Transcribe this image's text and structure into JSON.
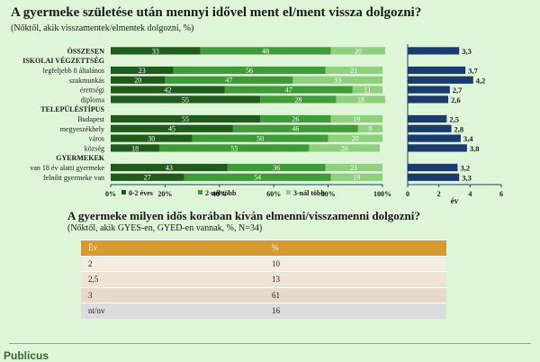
{
  "header": {
    "title": "A gyermeke születése után mennyi idővel ment el/ment vissza dolgozni?",
    "subtitle": "(Nőktől, akik visszamentek/elmentek dolgozni, %)"
  },
  "chart_data": [
    {
      "type": "bar",
      "stacked": true,
      "orientation": "horizontal",
      "categories": [
        "ÖSSZESEN",
        "ISKOLAI VÉGZETTSÉG",
        "legfeljebb 8 általános",
        "szakmunkás",
        "érettségi",
        "diploma",
        "TELEPÜLÉSTÍPUS",
        "Budapest",
        "megyeszékhely",
        "város",
        "község",
        "GYERMEKEK",
        "van 18 év alatti gyermeke",
        "felnőtt gyermeke van"
      ],
      "category_kinds": [
        "total",
        "group",
        "row",
        "row",
        "row",
        "row",
        "group",
        "row",
        "row",
        "row",
        "row",
        "group",
        "row",
        "row"
      ],
      "series": [
        {
          "name": "0-2 éves",
          "color": "#1f5b1a",
          "values": [
            33,
            null,
            23,
            20,
            42,
            55,
            null,
            55,
            45,
            30,
            18,
            null,
            43,
            27
          ]
        },
        {
          "name": "2-nél több",
          "color": "#3f9a38",
          "values": [
            48,
            null,
            56,
            47,
            47,
            28,
            null,
            26,
            46,
            50,
            55,
            null,
            36,
            54
          ]
        },
        {
          "name": "3-nál több",
          "color": "#8fd07f",
          "values": [
            20,
            null,
            21,
            33,
            11,
            18,
            null,
            19,
            9,
            20,
            26,
            null,
            21,
            19
          ]
        }
      ],
      "xlim": [
        0,
        100
      ],
      "xticks": [
        "0%",
        "20%",
        "40%",
        "60%",
        "80%",
        "100%"
      ],
      "legend": "bottom"
    },
    {
      "type": "bar",
      "orientation": "horizontal",
      "categories": [
        "ÖSSZESEN",
        "ISKOLAI VÉGZETTSÉG",
        "legfeljebb 8 általános",
        "szakmunkás",
        "érettségi",
        "diploma",
        "TELEPÜLÉSTÍPUS",
        "Budapest",
        "megyeszékhely",
        "város",
        "község",
        "GYERMEKEK",
        "van 18 év alatti gyermeke",
        "felnőtt gyermeke van"
      ],
      "values": [
        3.3,
        null,
        3.7,
        4.2,
        2.7,
        2.6,
        null,
        2.5,
        2.8,
        3.4,
        3.8,
        null,
        3.2,
        3.3
      ],
      "value_labels": [
        "3,3",
        "",
        "3,7",
        "4,2",
        "2,7",
        "2,6",
        "",
        "2,5",
        "2,8",
        "3,4",
        "3,8",
        "",
        "3,2",
        "3,3"
      ],
      "color": "#1a3b6e",
      "xlim": [
        0,
        6
      ],
      "xticks": [
        "0",
        "2",
        "4",
        "6"
      ],
      "xlabel": "év"
    }
  ],
  "table": {
    "title": "A gyermeke milyen idős korában kíván elmenni/visszamenni dolgozni?",
    "subtitle": "(Nőktől, akik GYES-en, GYED-en vannak, %, N=34)",
    "headers": [
      "Év",
      "%"
    ],
    "rows": [
      [
        "2",
        "10"
      ],
      [
        "2,5",
        "13"
      ],
      [
        "3",
        "61"
      ],
      [
        "nt/nv",
        "16"
      ]
    ],
    "colors": {
      "header": "#d69a2e"
    }
  },
  "footer": {
    "brand": "Publicus"
  }
}
